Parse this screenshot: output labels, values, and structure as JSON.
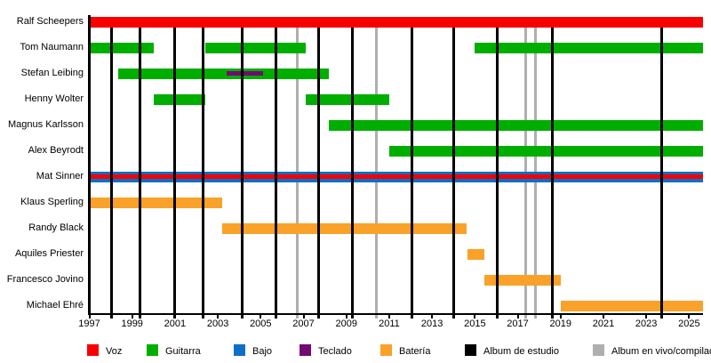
{
  "chart_data": {
    "type": "timeline",
    "title": "",
    "x_axis": {
      "start": 1997,
      "end": 2025.65,
      "tick_years": [
        1997,
        1999,
        2001,
        2003,
        2005,
        2007,
        2009,
        2011,
        2013,
        2015,
        2017,
        2019,
        2021,
        2023,
        2025
      ]
    },
    "members": [
      {
        "name": "Ralf Scheepers",
        "role": "voz",
        "stints": [
          [
            1997.0,
            2025.65
          ]
        ]
      },
      {
        "name": "Tom Naumann",
        "role": "guitarra",
        "stints": [
          [
            1997.0,
            2000.0
          ],
          [
            2002.4,
            2007.1
          ],
          [
            2015.0,
            2025.65
          ]
        ]
      },
      {
        "name": "Stefan Leibing",
        "role": "guitarra",
        "stints": [
          [
            1998.35,
            2008.2
          ]
        ],
        "overlays": [
          {
            "role": "teclado",
            "span": [
              2003.4,
              2005.1
            ]
          }
        ]
      },
      {
        "name": "Henny Wolter",
        "role": "guitarra",
        "stints": [
          [
            2000.0,
            2002.4
          ],
          [
            2007.1,
            2011.0
          ]
        ]
      },
      {
        "name": "Magnus Karlsson",
        "role": "guitarra",
        "stints": [
          [
            2008.2,
            2025.65
          ]
        ]
      },
      {
        "name": "Alex Beyrodt",
        "role": "guitarra",
        "stints": [
          [
            2011.0,
            2025.65
          ]
        ]
      },
      {
        "name": "Mat Sinner",
        "role": "bajo",
        "stints": [
          [
            1997.0,
            2025.65
          ]
        ],
        "overlays": [
          {
            "role": "voz",
            "span": [
              1997.0,
              2025.65
            ]
          }
        ]
      },
      {
        "name": "Klaus Sperling",
        "role": "bateria",
        "stints": [
          [
            1997.0,
            2003.2
          ]
        ]
      },
      {
        "name": "Randy Black",
        "role": "bateria",
        "stints": [
          [
            2003.2,
            2014.6
          ]
        ]
      },
      {
        "name": "Aquiles Priester",
        "role": "bateria",
        "stints": [
          [
            2014.65,
            2015.45
          ]
        ]
      },
      {
        "name": "Francesco Jovino",
        "role": "bateria",
        "stints": [
          [
            2015.45,
            2019.0
          ]
        ]
      },
      {
        "name": "Michael Ehré",
        "role": "bateria",
        "stints": [
          [
            2019.0,
            2025.65
          ]
        ]
      }
    ],
    "studio_album_years": [
      1998.05,
      1999.35,
      2001.0,
      2002.3,
      2004.15,
      2005.7,
      2007.7,
      2009.3,
      2012.05,
      2014.0,
      2016.05,
      2018.6,
      2023.7
    ],
    "live_comp_album_years": [
      2006.72,
      2010.4,
      2017.37,
      2017.83
    ]
  },
  "colors": {
    "voz": "#f80000",
    "guitarra": "#00ae00",
    "bajo": "#0d6fc8",
    "teclado": "#730973",
    "bateria": "#faa129",
    "estudio": "#000000",
    "vivo": "#afafaf"
  },
  "legend": {
    "items": [
      {
        "id": "voz",
        "label": "Voz"
      },
      {
        "id": "guitarra",
        "label": "Guitarra"
      },
      {
        "id": "bajo",
        "label": "Bajo"
      },
      {
        "id": "teclado",
        "label": "Teclado"
      },
      {
        "id": "bateria",
        "label": "Batería"
      },
      {
        "id": "estudio",
        "label": "Album de estudio"
      },
      {
        "id": "vivo",
        "label": "Album en vivo/compilado"
      }
    ]
  }
}
